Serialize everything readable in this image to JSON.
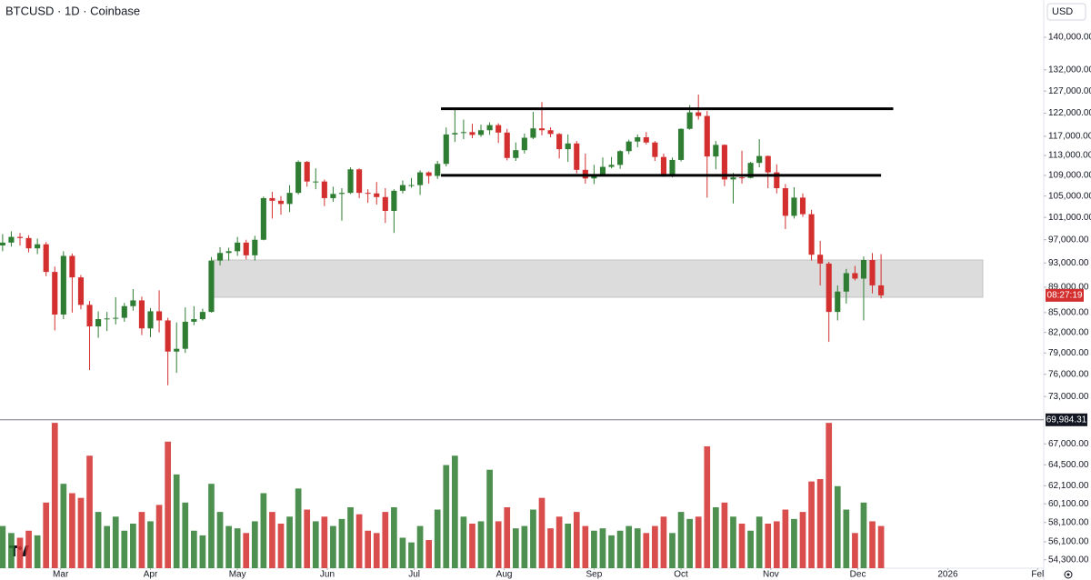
{
  "chart_data": {
    "type": "candlestick",
    "title": "BTCUSD · 1D · Coinbase",
    "currency": "USD",
    "log_scale": true,
    "grid": false,
    "up_color": "#2e7d32",
    "down_color": "#d32f2f",
    "ylim": [
      53480,
      149800
    ],
    "yticks": [
      {
        "value": 140000,
        "label": "140,000.00"
      },
      {
        "value": 132000,
        "label": "132,000.00"
      },
      {
        "value": 127000,
        "label": "127,000.00"
      },
      {
        "value": 122000,
        "label": "122,000.00"
      },
      {
        "value": 117000,
        "label": "117,000.00"
      },
      {
        "value": 113000,
        "label": "113,000.00"
      },
      {
        "value": 109000,
        "label": "109,000.00"
      },
      {
        "value": 105000,
        "label": "105,000.00"
      },
      {
        "value": 101000,
        "label": "101,000.00"
      },
      {
        "value": 97000,
        "label": "97,000.00"
      },
      {
        "value": 93000,
        "label": "93,000.00"
      },
      {
        "value": 89000,
        "label": "89,000.00"
      },
      {
        "value": 85000,
        "label": "85,000.00"
      },
      {
        "value": 82000,
        "label": "82,000.00"
      },
      {
        "value": 79000,
        "label": "79,000.00"
      },
      {
        "value": 76000,
        "label": "76,000.00"
      },
      {
        "value": 73000,
        "label": "73,000.00"
      },
      {
        "value": 67000,
        "label": "67,000.00"
      },
      {
        "value": 64500,
        "label": "64,500.00"
      },
      {
        "value": 62100,
        "label": "62,100.00"
      },
      {
        "value": 60100,
        "label": "60,100.00"
      },
      {
        "value": 58100,
        "label": "58,100.00"
      },
      {
        "value": 56100,
        "label": "56,100.00"
      },
      {
        "value": 54300,
        "label": "54,300.00"
      }
    ],
    "xlim": [
      -0.3,
      119.7
    ],
    "xticks": [
      {
        "value": 6.67,
        "label": "Mar"
      },
      {
        "value": 17,
        "label": "Apr"
      },
      {
        "value": 27,
        "label": "May"
      },
      {
        "value": 37.33,
        "label": "Jun"
      },
      {
        "value": 47.33,
        "label": "Jul"
      },
      {
        "value": 57.67,
        "label": "Aug"
      },
      {
        "value": 68,
        "label": "Sep"
      },
      {
        "value": 78,
        "label": "Oct"
      },
      {
        "value": 88.33,
        "label": "Nov"
      },
      {
        "value": 98.33,
        "label": "Dec"
      },
      {
        "value": 108.67,
        "label": "2026"
      },
      {
        "value": 119,
        "label": "Fel"
      }
    ],
    "candles": [
      [
        96000,
        98000,
        95000,
        96500
      ],
      [
        96500,
        98500,
        95800,
        97500
      ],
      [
        97500,
        98200,
        96000,
        97300
      ],
      [
        97300,
        97800,
        94800,
        95500
      ],
      [
        95500,
        97200,
        94500,
        96200
      ],
      [
        96200,
        96600,
        90800,
        91500
      ],
      [
        91500,
        92400,
        82300,
        84700
      ],
      [
        84700,
        95000,
        84000,
        94200
      ],
      [
        94200,
        94600,
        85000,
        90600
      ],
      [
        90600,
        91000,
        85500,
        86200
      ],
      [
        86200,
        86800,
        76600,
        82900
      ],
      [
        82900,
        85200,
        81200,
        84000
      ],
      [
        84000,
        85100,
        82200,
        84100
      ],
      [
        84100,
        87400,
        83200,
        84200
      ],
      [
        84200,
        86500,
        83600,
        86000
      ],
      [
        86000,
        88700,
        85300,
        86900
      ],
      [
        86900,
        87500,
        81600,
        82600
      ],
      [
        82600,
        85700,
        81300,
        85200
      ],
      [
        85200,
        88500,
        82000,
        83800
      ],
      [
        83800,
        84200,
        74500,
        79200
      ],
      [
        79200,
        83500,
        76200,
        79600
      ],
      [
        79600,
        85800,
        79000,
        83600
      ],
      [
        83600,
        86000,
        83100,
        84000
      ],
      [
        84000,
        85600,
        83800,
        85100
      ],
      [
        85100,
        94000,
        85000,
        93400
      ],
      [
        93400,
        95700,
        92600,
        94700
      ],
      [
        94700,
        95600,
        93400,
        95000
      ],
      [
        95000,
        97500,
        94200,
        96500
      ],
      [
        96500,
        97000,
        93600,
        94300
      ],
      [
        94300,
        97700,
        93400,
        97000
      ],
      [
        97000,
        104900,
        96900,
        104600
      ],
      [
        104600,
        105800,
        100800,
        104100
      ],
      [
        104100,
        105000,
        101500,
        103500
      ],
      [
        103500,
        107100,
        102000,
        105600
      ],
      [
        105600,
        112000,
        105300,
        111700
      ],
      [
        111700,
        111900,
        106800,
        107800
      ],
      [
        107800,
        110400,
        106300,
        107800
      ],
      [
        107800,
        108200,
        103100,
        104600
      ],
      [
        104600,
        106800,
        103900,
        105400
      ],
      [
        105400,
        106500,
        100400,
        105600
      ],
      [
        105600,
        110600,
        105400,
        110200
      ],
      [
        110200,
        110400,
        104600,
        105600
      ],
      [
        105600,
        106300,
        103700,
        105500
      ],
      [
        105500,
        107700,
        103400,
        104800
      ],
      [
        104800,
        106500,
        100000,
        102200
      ],
      [
        102200,
        106300,
        98200,
        106000
      ],
      [
        106000,
        108000,
        105500,
        107100
      ],
      [
        107100,
        108500,
        106600,
        107100
      ],
      [
        107100,
        110000,
        105200,
        109600
      ],
      [
        109600,
        109800,
        107400,
        108900
      ],
      [
        108900,
        111900,
        108300,
        111300
      ],
      [
        111300,
        118900,
        110800,
        117400
      ],
      [
        117400,
        123200,
        115800,
        117700
      ],
      [
        117700,
        120600,
        116400,
        117900
      ],
      [
        117900,
        119700,
        116600,
        117300
      ],
      [
        117300,
        119500,
        116900,
        118300
      ],
      [
        118300,
        120000,
        117300,
        119400
      ],
      [
        119400,
        119800,
        115600,
        117800
      ],
      [
        117800,
        118600,
        112000,
        112500
      ],
      [
        112500,
        115700,
        111900,
        114100
      ],
      [
        114100,
        117600,
        113400,
        116700
      ],
      [
        116700,
        122300,
        116400,
        118700
      ],
      [
        118700,
        124500,
        117200,
        118300
      ],
      [
        118300,
        118900,
        116800,
        117500
      ],
      [
        117500,
        117700,
        112400,
        114300
      ],
      [
        114300,
        117400,
        111700,
        115500
      ],
      [
        115500,
        116000,
        109400,
        110100
      ],
      [
        110100,
        113400,
        107400,
        108400
      ],
      [
        108400,
        111100,
        107300,
        109200
      ],
      [
        109200,
        112600,
        109000,
        110700
      ],
      [
        110700,
        112700,
        110400,
        111100
      ],
      [
        111100,
        114100,
        110300,
        113900
      ],
      [
        113900,
        116300,
        113300,
        115900
      ],
      [
        115900,
        117400,
        114700,
        116800
      ],
      [
        116800,
        117900,
        115300,
        115700
      ],
      [
        115700,
        116000,
        111900,
        112700
      ],
      [
        112700,
        113400,
        108700,
        109000
      ],
      [
        109000,
        112600,
        108600,
        112100
      ],
      [
        112100,
        118700,
        111800,
        118600
      ],
      [
        118600,
        123800,
        118400,
        122200
      ],
      [
        122200,
        126200,
        120600,
        121400
      ],
      [
        121400,
        122500,
        104700,
        112800
      ],
      [
        112800,
        116000,
        110200,
        115200
      ],
      [
        115200,
        115300,
        106900,
        108200
      ],
      [
        108200,
        109500,
        103600,
        108600
      ],
      [
        108600,
        114000,
        107400,
        108500
      ],
      [
        108500,
        111700,
        108400,
        111500
      ],
      [
        111500,
        116400,
        110600,
        112900
      ],
      [
        112900,
        113000,
        106500,
        109600
      ],
      [
        109600,
        111200,
        105500,
        106500
      ],
      [
        106500,
        107300,
        98900,
        101300
      ],
      [
        101300,
        106700,
        100800,
        104700
      ],
      [
        104700,
        105500,
        101100,
        101600
      ],
      [
        101600,
        102400,
        93400,
        94400
      ],
      [
        94400,
        96800,
        89300,
        92900
      ],
      [
        92900,
        93200,
        80600,
        85100
      ],
      [
        85100,
        89300,
        83800,
        88300
      ],
      [
        88300,
        92000,
        86400,
        91300
      ],
      [
        91300,
        92500,
        90100,
        90400
      ],
      [
        90400,
        94100,
        83800,
        93500
      ],
      [
        93500,
        94700,
        88000,
        89300
      ],
      [
        89300,
        94500,
        87200,
        87700
      ]
    ],
    "volume_ylim": [
      0,
      32000
    ],
    "volumes": [
      9000,
      7500,
      6500,
      8000,
      7000,
      14000,
      31000,
      18000,
      16000,
      15000,
      24000,
      12000,
      9000,
      11000,
      8000,
      9500,
      12000,
      10000,
      13500,
      27000,
      20000,
      14000,
      8000,
      7000,
      18000,
      12000,
      9000,
      8500,
      7500,
      10000,
      16000,
      12000,
      9500,
      11000,
      17000,
      12500,
      10000,
      11000,
      9000,
      10500,
      13000,
      11500,
      8000,
      7500,
      12000,
      13000,
      6500,
      5500,
      9000,
      6000,
      12500,
      22000,
      24000,
      11000,
      9500,
      10000,
      21000,
      10000,
      13000,
      8500,
      9000,
      12500,
      15000,
      8500,
      11000,
      9500,
      12000,
      9000,
      8000,
      8500,
      7000,
      8000,
      9000,
      8500,
      7500,
      9000,
      11000,
      7500,
      12000,
      10500,
      11000,
      26000,
      13000,
      14000,
      11000,
      9500,
      8000,
      11000,
      9500,
      10000,
      12500,
      10500,
      12000,
      18500,
      19000,
      31000,
      17500,
      12500,
      7500,
      14000,
      10000,
      9000
    ],
    "levels": [
      {
        "value": 123000,
        "x_range": [
          50.4,
          102.4
        ]
      },
      {
        "value": 109000,
        "x_range": [
          50.4,
          101
        ]
      }
    ],
    "zone": {
      "ylim": [
        87400,
        93500
      ],
      "x_range": [
        24,
        112.7
      ]
    },
    "crosshair": {
      "value": 69984.31,
      "label": "69,984.31"
    },
    "countdown": "08:27:19"
  }
}
